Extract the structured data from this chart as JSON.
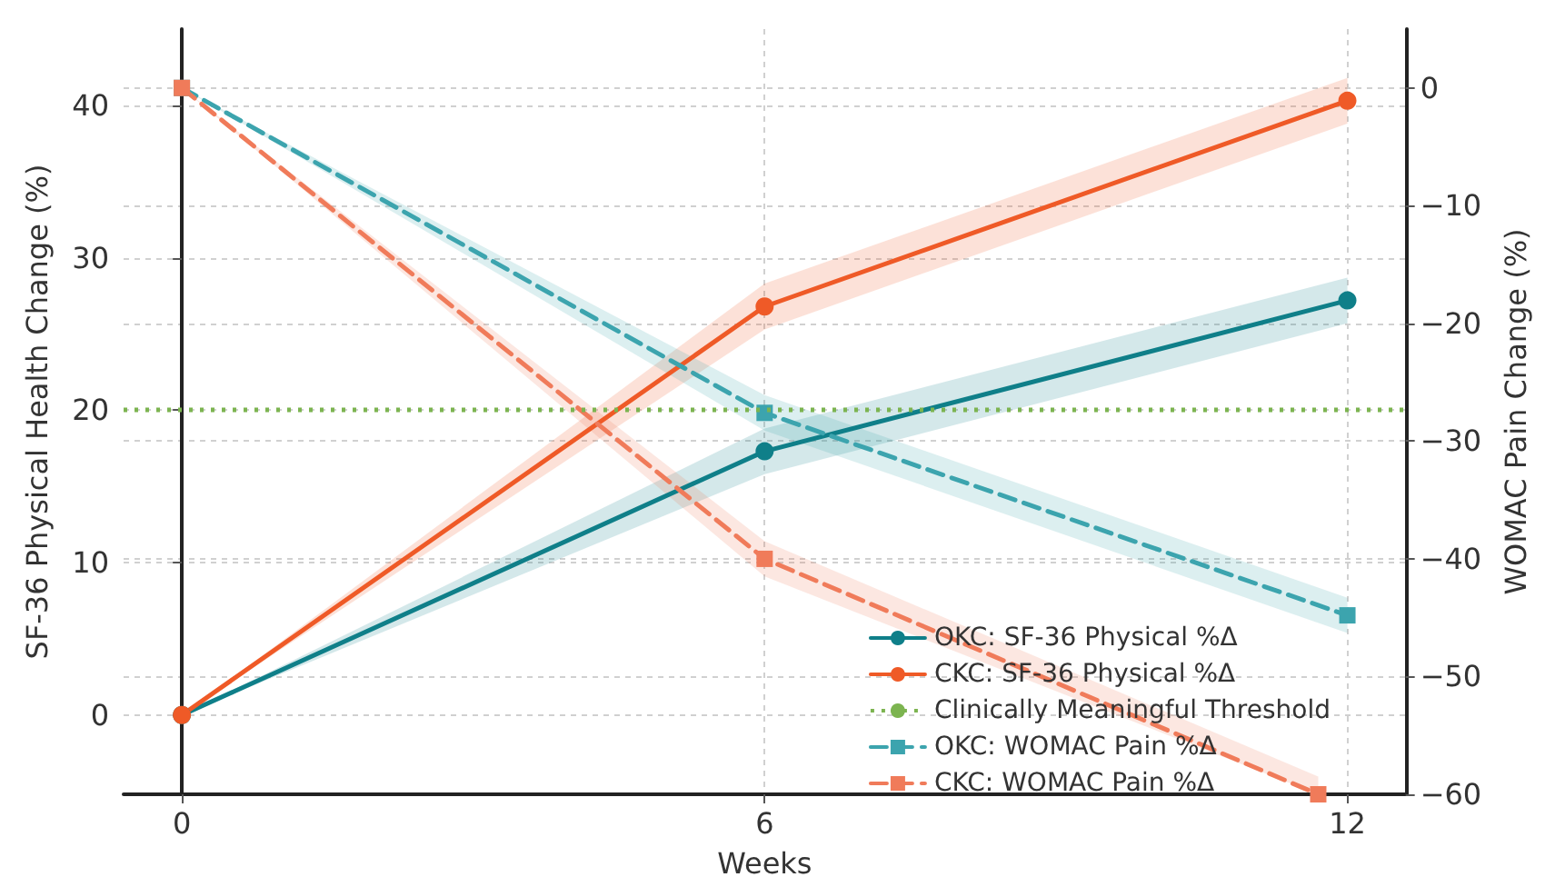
{
  "chart_data": {
    "type": "line",
    "xlabel": "Weeks",
    "ylabel": "SF-36 Physical Health Change (%)",
    "y2label": "WOMAC Pain Change (%)",
    "x": [
      0,
      6,
      12
    ],
    "xlim": [
      -0.6,
      12.6
    ],
    "xticks": [
      0,
      6,
      12
    ],
    "ylim": [
      -5.2,
      45
    ],
    "yticks": [
      0,
      10,
      20,
      30,
      40
    ],
    "y2lim": [
      -60,
      5
    ],
    "y2ticks": [
      -60,
      -50,
      -40,
      -30,
      -20,
      -10,
      0
    ],
    "grid": true,
    "legend": "bottom right",
    "series": [
      {
        "name": "OKC: SF-36 Physical %Δ",
        "color": "#0f7f89",
        "values": [
          0,
          17.3,
          27.2
        ],
        "lower": [
          0,
          15.8,
          25.7
        ],
        "upper": [
          0,
          18.8,
          28.7
        ],
        "marker": "circle",
        "line_style": "solid"
      },
      {
        "name": "CKC: SF-36 Physical %Δ",
        "color": "#ef5a27",
        "values": [
          0,
          26.8,
          40.3
        ],
        "lower": [
          0,
          25.3,
          38.8
        ],
        "upper": [
          0,
          28.3,
          41.8
        ],
        "marker": "circle",
        "line_style": "solid"
      },
      {
        "name": "OKC: WOMAC Pain %Δ",
        "color": "#3ca4ae",
        "values": [
          0,
          -27.6,
          -44.8
        ],
        "lower": [
          0,
          -29.1,
          -46.3
        ],
        "upper": [
          0,
          -26.1,
          -43.3
        ],
        "marker": "square",
        "line_style": "dashed",
        "axis": "y2"
      },
      {
        "name": "CKC: WOMAC Pain %Δ",
        "color": "#f07b5a",
        "x": [
          0,
          6,
          11.7
        ],
        "values": [
          0,
          -40,
          -60
        ],
        "lower": [
          0,
          -41.5,
          -60
        ],
        "upper": [
          0,
          -38.5,
          -58.5
        ],
        "marker": "square",
        "line_style": "dashed",
        "axis": "y2"
      }
    ],
    "ref_lines": [
      {
        "axis": "y",
        "value": 20,
        "label": "Clinically Meaningful Threshold",
        "color": "#7cb450",
        "line_style": "dotted"
      }
    ]
  }
}
